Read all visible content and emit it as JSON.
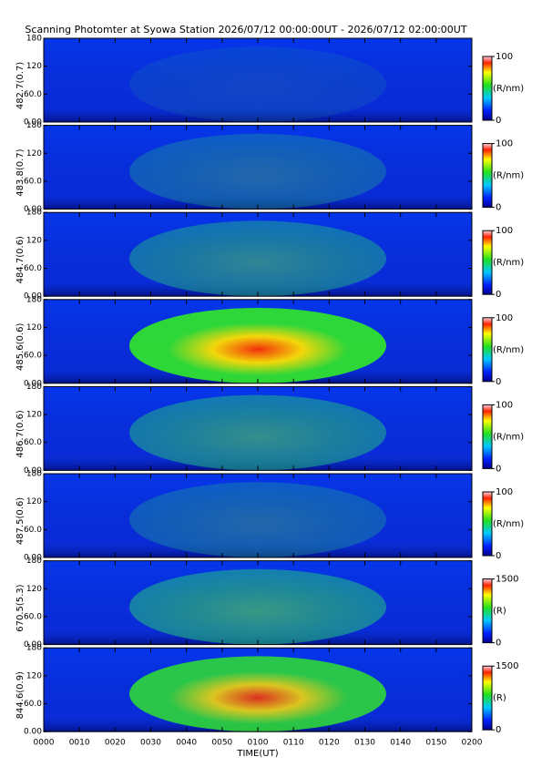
{
  "chart_data": [
    {
      "type": "heatmap",
      "title": "Scanning Photomter at Syowa Station  2026/07/12 00:00:00UT - 2026/07/12 02:00:00UT",
      "ylabel": "482.7(0.7)",
      "ylim": [
        0,
        180
      ],
      "yticks": [
        {
          "value": 0,
          "label": "0.00"
        },
        {
          "value": 60,
          "label": "60.0"
        },
        120,
        180
      ],
      "zlim": [
        0,
        100
      ],
      "zticks": [
        0,
        100
      ],
      "zlabel": "(R/nm)"
    },
    {
      "type": "heatmap",
      "ylabel": "483.8(0.7)",
      "ylim": [
        0,
        180
      ],
      "yticks": [
        {
          "value": 0,
          "label": "0.00"
        },
        {
          "value": 60,
          "label": "60.0"
        },
        120,
        180
      ],
      "zlim": [
        0,
        100
      ],
      "zticks": [
        0,
        100
      ],
      "zlabel": "(R/nm)"
    },
    {
      "type": "heatmap",
      "ylabel": "484.7(0.6)",
      "ylim": [
        0,
        180
      ],
      "yticks": [
        {
          "value": 0,
          "label": "0.00"
        },
        {
          "value": 60,
          "label": "60.0"
        },
        120,
        180
      ],
      "zlim": [
        0,
        100
      ],
      "zticks": [
        0,
        100
      ],
      "zlabel": "(R/nm)"
    },
    {
      "type": "heatmap",
      "ylabel": "485.6(0.6)",
      "ylim": [
        0,
        180
      ],
      "yticks": [
        {
          "value": 0,
          "label": "0.00"
        },
        {
          "value": 60,
          "label": "60.0"
        },
        120,
        180
      ],
      "zlim": [
        0,
        100
      ],
      "zticks": [
        0,
        100
      ],
      "zlabel": "(R/nm)"
    },
    {
      "type": "heatmap",
      "ylabel": "486.7(0.6)",
      "ylim": [
        0,
        180
      ],
      "yticks": [
        {
          "value": 0,
          "label": "0.00"
        },
        {
          "value": 60,
          "label": "60.0"
        },
        120,
        180
      ],
      "zlim": [
        0,
        100
      ],
      "zticks": [
        0,
        100
      ],
      "zlabel": "(R/nm)"
    },
    {
      "type": "heatmap",
      "ylabel": "487.5(0.6)",
      "ylim": [
        0,
        180
      ],
      "yticks": [
        {
          "value": 0,
          "label": "0.00"
        },
        {
          "value": 60,
          "label": "60.0"
        },
        120,
        180
      ],
      "zlim": [
        0,
        100
      ],
      "zticks": [
        0,
        100
      ],
      "zlabel": "(R/nm)"
    },
    {
      "type": "heatmap",
      "ylabel": "670.5(5.3)",
      "ylim": [
        0,
        180
      ],
      "yticks": [
        {
          "value": 0,
          "label": "0.00"
        },
        {
          "value": 60,
          "label": "60.0"
        },
        120,
        180
      ],
      "zlim": [
        0,
        1500
      ],
      "zticks": [
        0,
        1500
      ],
      "zlabel": "(R)"
    },
    {
      "type": "heatmap",
      "ylabel": "844.6(0.9)",
      "ylim": [
        0,
        180
      ],
      "yticks": [
        {
          "value": 0,
          "label": "0.00"
        },
        {
          "value": 60,
          "label": "60.0"
        },
        120,
        180
      ],
      "zlim": [
        0,
        1500
      ],
      "zticks": [
        0,
        1500
      ],
      "zlabel": "(R)",
      "xlabel": "TIME(UT)",
      "xlim": [
        0,
        120
      ],
      "xticks": [
        {
          "value": 0,
          "label": "0000"
        },
        {
          "value": 10,
          "label": "0010"
        },
        {
          "value": 20,
          "label": "0020"
        },
        {
          "value": 30,
          "label": "0030"
        },
        {
          "value": 40,
          "label": "0040"
        },
        {
          "value": 50,
          "label": "0050"
        },
        {
          "value": 60,
          "label": "0100"
        },
        {
          "value": 70,
          "label": "0110"
        },
        {
          "value": 80,
          "label": "0120"
        },
        {
          "value": 90,
          "label": "0130"
        },
        {
          "value": 100,
          "label": "0140"
        },
        {
          "value": 110,
          "label": "0150"
        },
        {
          "value": 120,
          "label": "0200"
        }
      ]
    }
  ]
}
